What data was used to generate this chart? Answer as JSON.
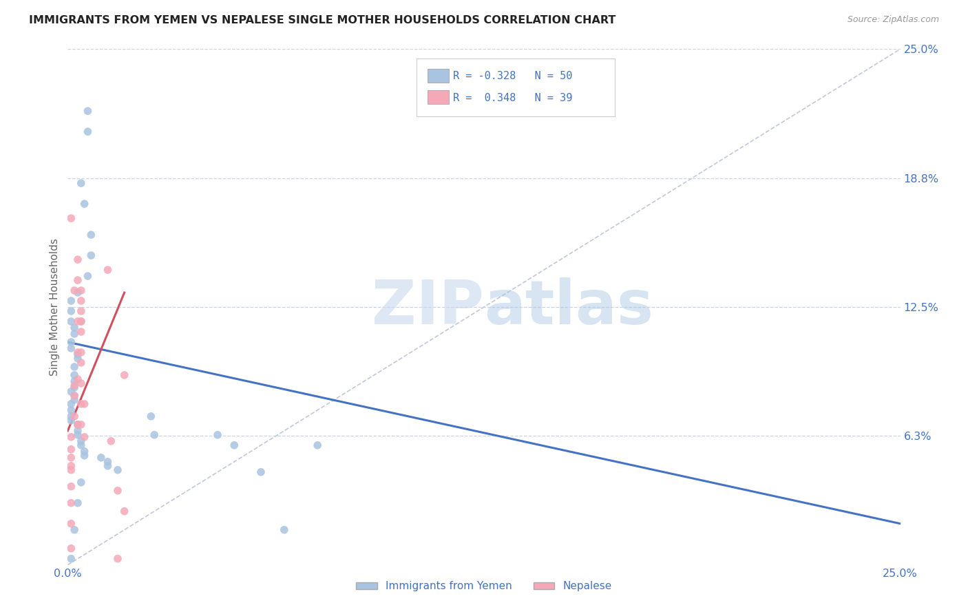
{
  "title": "IMMIGRANTS FROM YEMEN VS NEPALESE SINGLE MOTHER HOUSEHOLDS CORRELATION CHART",
  "source": "Source: ZipAtlas.com",
  "ylabel": "Single Mother Households",
  "watermark_zip": "ZIP",
  "watermark_atlas": "atlas",
  "legend_text1": "R = -0.328   N = 50",
  "legend_text2": "R =  0.348   N = 39",
  "legend_label1": "Immigrants from Yemen",
  "legend_label2": "Nepalese",
  "xmin": 0.0,
  "xmax": 0.25,
  "ymin": 0.0,
  "ymax": 0.25,
  "color_blue": "#a8c4e0",
  "color_pink": "#f4a8b8",
  "line_blue": "#4472c4",
  "line_pink": "#d05060",
  "line_diag": "#c0c8d8",
  "title_color": "#222222",
  "axis_label_color": "#666666",
  "tick_color": "#4472c4",
  "grid_color": "#c8d4e8",
  "background": "#ffffff",
  "blue_x": [
    0.006,
    0.006,
    0.004,
    0.005,
    0.007,
    0.007,
    0.006,
    0.003,
    0.001,
    0.001,
    0.001,
    0.002,
    0.002,
    0.001,
    0.001,
    0.003,
    0.003,
    0.002,
    0.002,
    0.002,
    0.002,
    0.001,
    0.002,
    0.002,
    0.001,
    0.001,
    0.001,
    0.001,
    0.003,
    0.003,
    0.003,
    0.004,
    0.004,
    0.005,
    0.005,
    0.01,
    0.012,
    0.012,
    0.015,
    0.025,
    0.026,
    0.045,
    0.05,
    0.058,
    0.065,
    0.075,
    0.001,
    0.002,
    0.003,
    0.004
  ],
  "blue_y": [
    0.22,
    0.21,
    0.185,
    0.175,
    0.16,
    0.15,
    0.14,
    0.132,
    0.128,
    0.123,
    0.118,
    0.115,
    0.112,
    0.108,
    0.105,
    0.102,
    0.1,
    0.096,
    0.092,
    0.089,
    0.086,
    0.084,
    0.082,
    0.08,
    0.078,
    0.075,
    0.072,
    0.07,
    0.068,
    0.065,
    0.063,
    0.06,
    0.058,
    0.055,
    0.053,
    0.052,
    0.05,
    0.048,
    0.046,
    0.072,
    0.063,
    0.063,
    0.058,
    0.045,
    0.017,
    0.058,
    0.003,
    0.017,
    0.03,
    0.04
  ],
  "pink_x": [
    0.001,
    0.001,
    0.001,
    0.001,
    0.001,
    0.001,
    0.001,
    0.001,
    0.001,
    0.002,
    0.002,
    0.002,
    0.002,
    0.003,
    0.003,
    0.003,
    0.003,
    0.003,
    0.003,
    0.004,
    0.004,
    0.004,
    0.004,
    0.004,
    0.004,
    0.004,
    0.004,
    0.004,
    0.004,
    0.004,
    0.005,
    0.005,
    0.012,
    0.013,
    0.015,
    0.015,
    0.017,
    0.017,
    0.001
  ],
  "pink_y": [
    0.046,
    0.062,
    0.056,
    0.052,
    0.048,
    0.038,
    0.03,
    0.02,
    0.008,
    0.133,
    0.087,
    0.082,
    0.072,
    0.148,
    0.138,
    0.118,
    0.103,
    0.09,
    0.068,
    0.133,
    0.113,
    0.078,
    0.128,
    0.118,
    0.098,
    0.118,
    0.088,
    0.103,
    0.123,
    0.068,
    0.078,
    0.062,
    0.143,
    0.06,
    0.003,
    0.036,
    0.092,
    0.026,
    0.168
  ],
  "blue_line_x0": 0.0,
  "blue_line_x1": 0.25,
  "blue_line_y0": 0.108,
  "blue_line_y1": 0.02,
  "pink_line_x0": 0.0,
  "pink_line_x1": 0.017,
  "pink_line_y0": 0.065,
  "pink_line_y1": 0.132
}
